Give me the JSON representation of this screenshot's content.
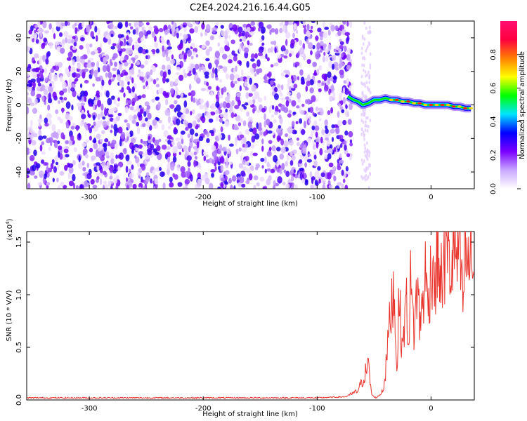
{
  "figure_title": "C2E4.2024.216.16.44.G05",
  "chart_data": [
    {
      "type": "heatmap",
      "title": "",
      "xlabel": "Height of straight line (km)",
      "ylabel": "Frequency (Hz)",
      "xlim": [
        -355,
        38
      ],
      "ylim": [
        -50,
        50
      ],
      "xticks": [
        -300,
        -200,
        -100,
        0
      ],
      "yticks": [
        -40,
        -20,
        0,
        20,
        40
      ],
      "signal_end_x": -70,
      "gap_x": [
        -72,
        -56
      ],
      "tone_track": {
        "x": [
          -73,
          -68,
          -64,
          -60,
          -55,
          -50,
          -45,
          -40,
          -35,
          -30,
          -25,
          -20,
          -15,
          -10,
          -5,
          0,
          5,
          10,
          15,
          20,
          25,
          30,
          35
        ],
        "y": [
          5,
          3,
          2,
          0,
          1,
          3,
          3,
          4,
          3,
          3,
          2,
          2,
          1,
          1,
          0,
          0,
          0,
          0,
          0,
          -1,
          -1,
          -2,
          -2
        ]
      },
      "colorbar": {
        "label": "Normalized spectral amplitude",
        "range": [
          0,
          1
        ],
        "ticks": [
          "0.0",
          "0.2",
          "0.4",
          "0.6",
          "0.8"
        ],
        "colors": [
          "#ffffff",
          "#c9a8ff",
          "#7a00ff",
          "#0000ff",
          "#00e5ff",
          "#00ff00",
          "#ffff00",
          "#ff8000",
          "#ff0040",
          "#ff1070"
        ]
      }
    },
    {
      "type": "line",
      "title": "",
      "xlabel": "Height of straight line (km)",
      "ylabel": "SNR (10 * V/V)",
      "scale_label": "(x10",
      "scale_exp": "4",
      "scale_close": ")",
      "xlim": [
        -355,
        38
      ],
      "ylim": [
        0,
        1.6
      ],
      "xticks": [
        -300,
        -200,
        -100,
        0
      ],
      "yticks": [
        0.0,
        0.5,
        1.0,
        1.5
      ],
      "ytick_labels": [
        "0.0",
        "0.5",
        "1.0",
        "1.5"
      ],
      "color": "#e8342c",
      "series": [
        {
          "x": [
            -355,
            -330,
            -300,
            -250,
            -200,
            -150,
            -100,
            -75,
            -65,
            -60,
            -57,
            -55,
            -54,
            -52,
            -50,
            -48,
            -45,
            -42,
            -40,
            -38,
            -35,
            -33,
            -31,
            -30,
            -28,
            -25,
            -22,
            -20,
            -18,
            -15,
            -12,
            -10,
            -8,
            -5,
            -3,
            0,
            2,
            4,
            6,
            8,
            10,
            12,
            15,
            18,
            20,
            22,
            25,
            28,
            30,
            32,
            35,
            38
          ],
          "y": [
            0.02,
            0.02,
            0.02,
            0.02,
            0.02,
            0.02,
            0.02,
            0.03,
            0.08,
            0.18,
            0.28,
            0.33,
            0.22,
            0.05,
            0.03,
            0.02,
            0.05,
            0.1,
            0.25,
            0.55,
            0.85,
            1.12,
            0.6,
            0.3,
            0.95,
            0.45,
            1.0,
            0.55,
            1.08,
            0.65,
            1.1,
            0.75,
            0.85,
            1.2,
            0.9,
            1.22,
            1.35,
            0.95,
            1.62,
            1.05,
            1.2,
            1.3,
            1.45,
            1.15,
            1.55,
            1.3,
            1.42,
            0.88,
            1.48,
            1.25,
            1.38,
            1.2
          ]
        }
      ]
    }
  ]
}
